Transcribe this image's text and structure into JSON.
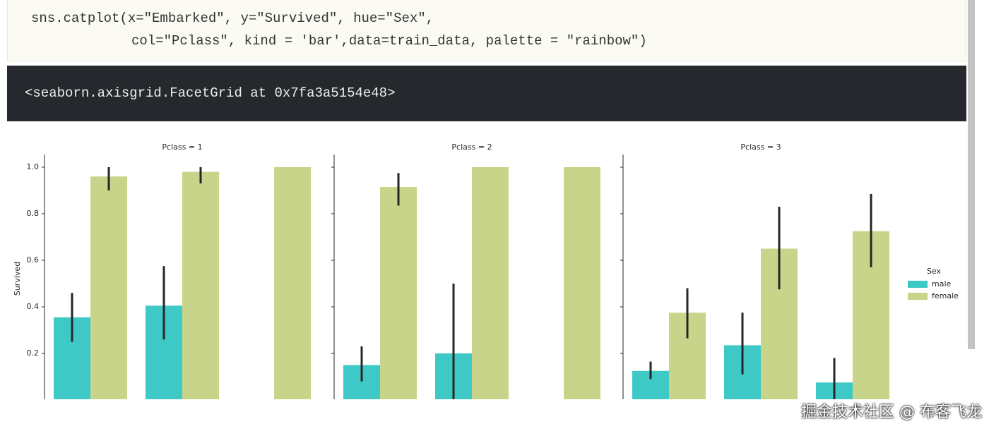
{
  "code": {
    "lines": [
      "sns.catplot(x=\"Embarked\", y=\"Survived\", hue=\"Sex\",",
      "col=\"Pclass\", kind = 'bar',data=train_data, palette = \"rainbow\")"
    ]
  },
  "output": {
    "text": "<seaborn.axisgrid.FacetGrid at 0x7fa3a5154e48>"
  },
  "watermark": "掘金技术社区 @ 布客飞龙",
  "chart_data": [
    {
      "type": "bar",
      "title": "Pclass = 1",
      "ylabel": "Survived",
      "categories": [
        null,
        null,
        null
      ],
      "ylim": [
        0,
        1.05
      ],
      "yticks": [
        0.2,
        0.4,
        0.6,
        0.8,
        {
          "value": 1,
          "label": "1.0"
        }
      ],
      "series": [
        {
          "name": "male",
          "color": "#3ec9c6",
          "values": [
            0.355,
            0.405,
            null
          ],
          "ci": [
            [
              0.25,
              0.46
            ],
            [
              0.26,
              0.575
            ],
            null
          ]
        },
        {
          "name": "female",
          "color": "#c9d48b",
          "values": [
            0.96,
            0.98,
            1
          ],
          "ci": [
            [
              0.9,
              1
            ],
            [
              0.93,
              1
            ],
            null
          ]
        }
      ]
    },
    {
      "type": "bar",
      "title": "Pclass = 2",
      "categories": [
        null,
        null,
        null
      ],
      "ylim": [
        0,
        1.05
      ],
      "series": [
        {
          "name": "male",
          "color": "#3ec9c6",
          "values": [
            0.15,
            0.2,
            null
          ],
          "ci": [
            [
              0.08,
              0.23
            ],
            [
              0,
              0.5
            ],
            null
          ]
        },
        {
          "name": "female",
          "color": "#c9d48b",
          "values": [
            0.915,
            1,
            1
          ],
          "ci": [
            [
              0.835,
              0.975
            ],
            null,
            null
          ]
        }
      ]
    },
    {
      "type": "bar",
      "title": "Pclass = 3",
      "categories": [
        null,
        null,
        null
      ],
      "ylim": [
        0,
        1.05
      ],
      "legend_title": "Sex",
      "series": [
        {
          "name": "male",
          "color": "#3ec9c6",
          "values": [
            0.125,
            0.235,
            0.075
          ],
          "ci": [
            [
              0.09,
              0.165
            ],
            [
              0.11,
              0.375
            ],
            [
              0,
              0.18
            ]
          ]
        },
        {
          "name": "female",
          "color": "#c9d48b",
          "values": [
            0.375,
            0.65,
            0.725
          ],
          "ci": [
            [
              0.265,
              0.48
            ],
            [
              0.475,
              0.83
            ],
            [
              0.57,
              0.885
            ]
          ]
        }
      ]
    }
  ]
}
